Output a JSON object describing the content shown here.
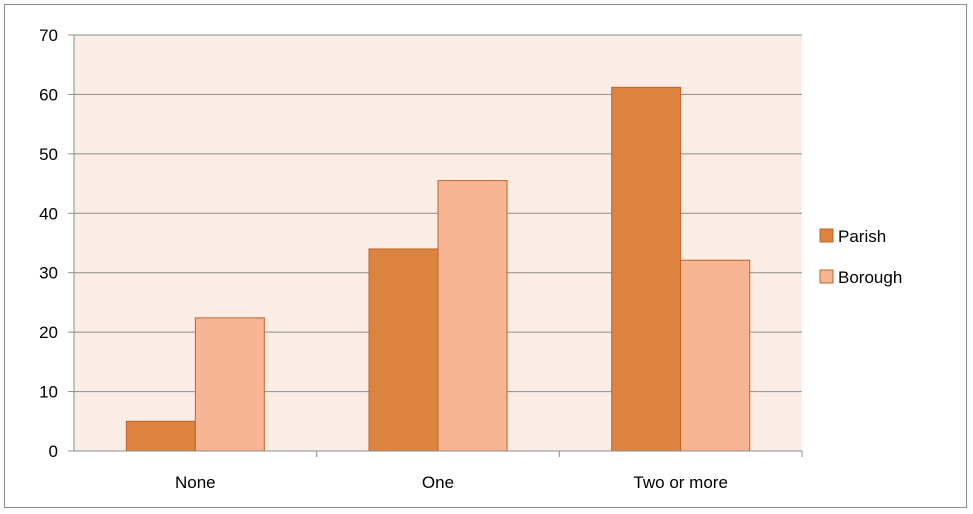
{
  "chart_data": {
    "type": "bar",
    "categories": [
      "None",
      "One",
      "Two or more"
    ],
    "series": [
      {
        "name": "Parish",
        "values": [
          5,
          34,
          61.2
        ],
        "color": "#DC843F"
      },
      {
        "name": "Borough",
        "values": [
          22.4,
          45.5,
          32.1
        ],
        "color": "#F8B593"
      }
    ],
    "ylim": [
      0,
      70
    ],
    "yticks": [
      0,
      10,
      20,
      30,
      40,
      50,
      60,
      70
    ],
    "title": "",
    "xlabel": "",
    "ylabel": "",
    "grid": true,
    "legend_position": "right",
    "plot_background": "#FCECE6",
    "gridline_color": "#8c8c8c",
    "bar_border_color": "#C0652A"
  }
}
